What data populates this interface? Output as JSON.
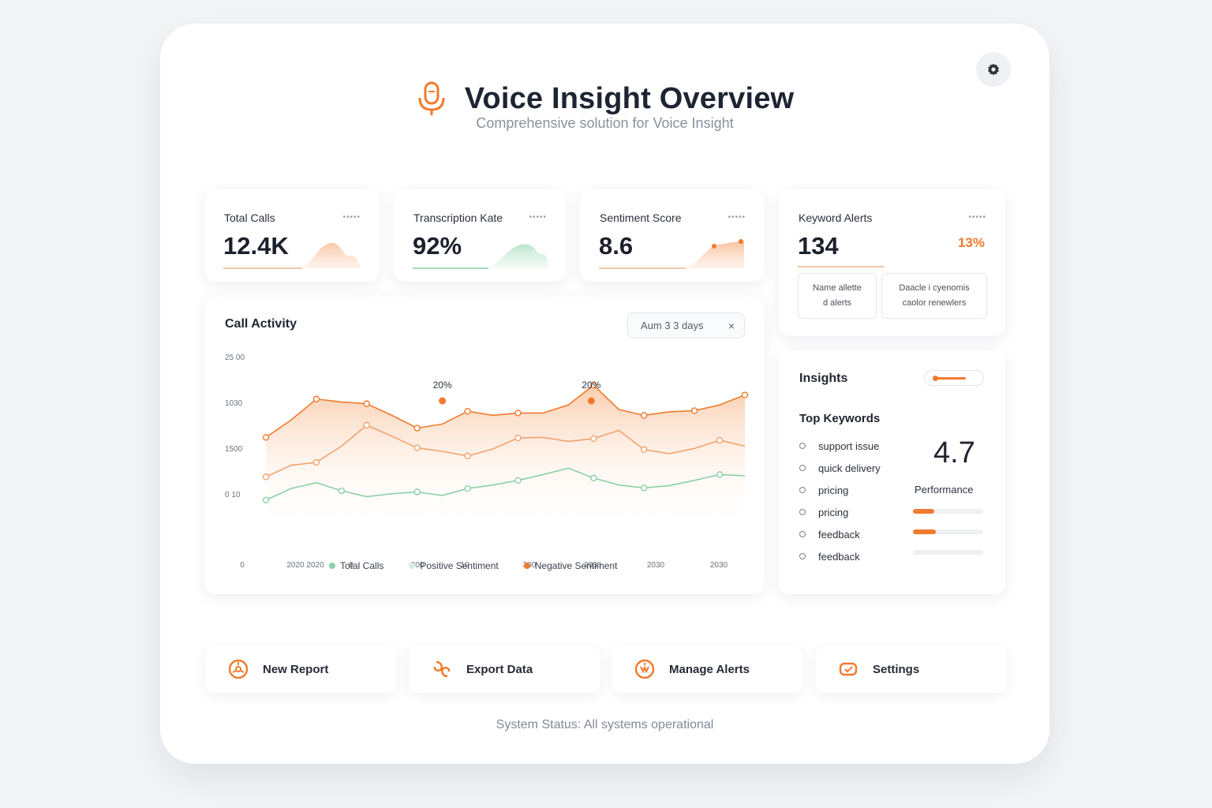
{
  "header": {
    "title": "Voice Insight Overview",
    "subtitle": "Comprehensive solution for Voice Insight"
  },
  "stats": [
    {
      "label": "Total Calls",
      "value": "12.4K"
    },
    {
      "label": "Transcription Kate",
      "value": "92%"
    },
    {
      "label": "Sentiment Score",
      "value": "8.6"
    },
    {
      "label": "Keyword Alerts",
      "value": "134",
      "badge": "13%"
    }
  ],
  "alerts": {
    "box1_line1": "Name allette",
    "box1_line2": "d alerts",
    "box2_line1": "Daacle i cyenomis",
    "box2_line2": "caolor renewlers"
  },
  "activity": {
    "title": "Call Activity",
    "range_label": "Aum 3 3 days",
    "close_glyph": "×",
    "y_ticks": [
      "25 00",
      "1030",
      "1500",
      "0 10"
    ],
    "x_ticks": [
      "0",
      "2020 2020",
      "0",
      "300",
      "10",
      "300",
      "2030",
      "2030",
      "2030"
    ],
    "callouts": [
      "20%",
      "20%"
    ],
    "legend": [
      "Total Calls",
      "Positive Sentiment",
      "Negative Sentiment"
    ]
  },
  "insights": {
    "title": "Insights",
    "keywords_title": "Top Keywords",
    "keywords": [
      "support issue",
      "quick delivery",
      "pricing",
      "pricing",
      "feedback",
      "feedback"
    ],
    "performance_value": "4.7",
    "performance_label": "Performance",
    "perf_bars": [
      0.3,
      0.33,
      0.0
    ]
  },
  "actions": [
    {
      "label": "New Report",
      "icon": "report-icon"
    },
    {
      "label": "Export Data",
      "icon": "export-icon"
    },
    {
      "label": "Manage Alerts",
      "icon": "alert-icon"
    },
    {
      "label": "Settings",
      "icon": "settings-icon"
    }
  ],
  "status": "System Status: All systems operational",
  "chart_data": {
    "type": "line",
    "title": "Call Activity",
    "x": [
      0,
      1,
      2,
      3,
      4,
      5,
      6,
      7,
      8,
      9,
      10,
      11,
      12,
      13,
      14,
      15,
      16,
      17,
      18,
      19
    ],
    "series": [
      {
        "name": "Total Calls",
        "color": "#8ccfa8",
        "values": [
          220,
          420,
          520,
          380,
          280,
          330,
          360,
          300,
          420,
          480,
          560,
          660,
          770,
          600,
          480,
          430,
          470,
          560,
          660,
          640
        ]
      },
      {
        "name": "Positive Sentiment",
        "color": "#f4a36c",
        "values": [
          620,
          820,
          870,
          1150,
          1510,
          1320,
          1120,
          1060,
          980,
          1100,
          1290,
          1300,
          1230,
          1280,
          1420,
          1090,
          1020,
          1110,
          1250,
          1150
        ]
      },
      {
        "name": "Negative Sentiment",
        "color": "#f07a2e",
        "values": [
          1300,
          1600,
          1960,
          1910,
          1880,
          1680,
          1460,
          1530,
          1750,
          1680,
          1720,
          1720,
          1860,
          2200,
          1780,
          1680,
          1740,
          1760,
          1860,
          2030
        ]
      }
    ],
    "ylim": [
      0,
      2500
    ],
    "legend_position": "bottom"
  },
  "colors": {
    "accent": "#f07a2e",
    "green": "#8ccfa8",
    "soft_orange": "#f4a36c"
  }
}
